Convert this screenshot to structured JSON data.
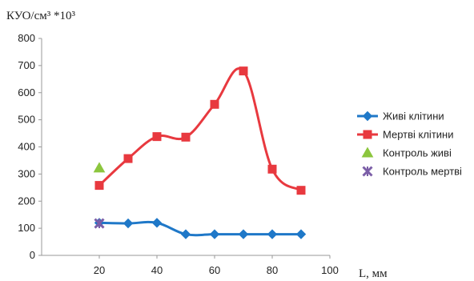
{
  "chart_data": {
    "type": "line",
    "ylabel": "КУО/см³ *10³",
    "xlabel": "L, мм",
    "xlim": [
      0,
      100
    ],
    "ylim": [
      0,
      800
    ],
    "x_ticks": [
      20,
      40,
      60,
      80,
      100
    ],
    "y_ticks": [
      0,
      100,
      200,
      300,
      400,
      500,
      600,
      700,
      800
    ],
    "grid": false,
    "legend_position": "right",
    "series": [
      {
        "name": "Живі клітини",
        "color": "#1f78c8",
        "marker": "diamond",
        "smooth": true,
        "x": [
          20,
          30,
          40,
          50,
          60,
          70,
          80,
          90
        ],
        "y": [
          120,
          118,
          120,
          78,
          78,
          78,
          78,
          78
        ]
      },
      {
        "name": "Мертві клітини",
        "color": "#e8393f",
        "marker": "square",
        "smooth": true,
        "x": [
          20,
          30,
          40,
          50,
          60,
          70,
          80,
          90
        ],
        "y": [
          258,
          357,
          438,
          436,
          557,
          680,
          318,
          240
        ]
      },
      {
        "name": "Контроль живі",
        "color": "#8cc63e",
        "marker": "triangle",
        "smooth": false,
        "x": [
          20
        ],
        "y": [
          322
        ]
      },
      {
        "name": "Контроль мертві",
        "color": "#7b5ea7",
        "marker": "x",
        "smooth": false,
        "x": [
          20
        ],
        "y": [
          118
        ]
      }
    ]
  }
}
